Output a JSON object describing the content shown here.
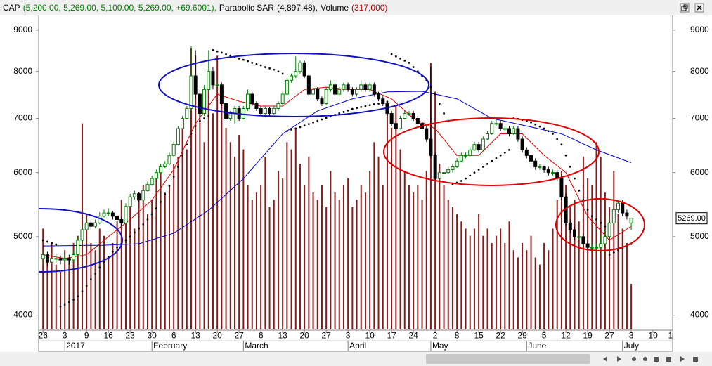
{
  "chart_data": {
    "type": "candlestick",
    "symbol": "CAP",
    "quote": "(5,200.00, 5,269.00, 5,100.00, 5,269.00, +69.6001),",
    "log_scale": true,
    "ylim": [
      3840,
      9270
    ],
    "yticks": [
      4000,
      5000,
      6000,
      7000,
      8000,
      9000
    ],
    "xlim": [
      -1,
      144.5
    ],
    "xticks": [
      {
        "value": 0,
        "label": "26"
      },
      {
        "value": 5,
        "label": "3"
      },
      {
        "value": 10,
        "label": "9"
      },
      {
        "value": 15,
        "label": "16"
      },
      {
        "value": 20,
        "label": "23"
      },
      {
        "value": 25,
        "label": "30"
      },
      {
        "value": 30,
        "label": "6"
      },
      {
        "value": 35,
        "label": "13"
      },
      {
        "value": 40,
        "label": "20"
      },
      {
        "value": 45,
        "label": "27"
      },
      {
        "value": 50,
        "label": "6"
      },
      {
        "value": 55,
        "label": "13"
      },
      {
        "value": 60,
        "label": "20"
      },
      {
        "value": 65,
        "label": "27"
      },
      {
        "value": 70,
        "label": "3"
      },
      {
        "value": 75,
        "label": "10"
      },
      {
        "value": 80,
        "label": "17"
      },
      {
        "value": 85,
        "label": "24"
      },
      {
        "value": 90,
        "label": "2"
      },
      {
        "value": 95,
        "label": "8"
      },
      {
        "value": 100,
        "label": "15"
      },
      {
        "value": 105,
        "label": "22"
      },
      {
        "value": 110,
        "label": "29"
      },
      {
        "value": 115,
        "label": "5"
      },
      {
        "value": 120,
        "label": "12"
      },
      {
        "value": 125,
        "label": "19"
      },
      {
        "value": 130,
        "label": "27"
      },
      {
        "value": 135,
        "label": "3"
      },
      {
        "value": 140,
        "label": "10"
      },
      {
        "value": 144,
        "label": "1"
      }
    ],
    "month_ticks": [
      {
        "value": 5,
        "label": "2017"
      },
      {
        "value": 25,
        "label": "February"
      },
      {
        "value": 46,
        "label": "March"
      },
      {
        "value": 70,
        "label": "April"
      },
      {
        "value": 89,
        "label": "May"
      },
      {
        "value": 111,
        "label": "June"
      },
      {
        "value": 133,
        "label": "July"
      }
    ],
    "up_color": "#008000",
    "down_color": "#000000",
    "candles": [
      [
        4700,
        4800,
        4600,
        4750
      ],
      [
        4750,
        4790,
        4600,
        4650
      ],
      [
        4650,
        4760,
        4620,
        4700
      ],
      [
        4700,
        4760,
        4640,
        4700
      ],
      [
        4700,
        4740,
        4620,
        4680
      ],
      [
        4680,
        4760,
        4640,
        4700
      ],
      [
        4700,
        4750,
        4620,
        4680
      ],
      [
        4680,
        4800,
        4650,
        4750
      ],
      [
        4750,
        5000,
        4720,
        4950
      ],
      [
        4950,
        5150,
        4900,
        5100
      ],
      [
        5100,
        5260,
        5080,
        5200
      ],
      [
        5200,
        5240,
        5100,
        5150
      ],
      [
        5150,
        5250,
        5120,
        5200
      ],
      [
        5200,
        5360,
        5180,
        5300
      ],
      [
        5300,
        5400,
        5280,
        5350
      ],
      [
        5350,
        5420,
        5300,
        5350
      ],
      [
        5350,
        5380,
        5250,
        5300
      ],
      [
        5300,
        5340,
        5200,
        5250
      ],
      [
        5250,
        5280,
        5150,
        5200
      ],
      [
        5200,
        5500,
        5180,
        5450
      ],
      [
        5450,
        5650,
        5430,
        5600
      ],
      [
        5600,
        5700,
        5560,
        5650
      ],
      [
        5650,
        5680,
        5520,
        5550
      ],
      [
        5550,
        5750,
        5530,
        5700
      ],
      [
        5700,
        5850,
        5680,
        5800
      ],
      [
        5800,
        5950,
        5780,
        5900
      ],
      [
        5900,
        6050,
        5880,
        6000
      ],
      [
        6000,
        6150,
        5980,
        6100
      ],
      [
        6100,
        6200,
        6080,
        6150
      ],
      [
        6150,
        6350,
        6130,
        6300
      ],
      [
        6300,
        6550,
        6280,
        6500
      ],
      [
        6500,
        6850,
        6480,
        6800
      ],
      [
        6800,
        7050,
        6780,
        7000
      ],
      [
        7000,
        7250,
        6980,
        7200
      ],
      [
        7200,
        8600,
        7150,
        7900
      ],
      [
        7900,
        8500,
        7400,
        7500
      ],
      [
        7500,
        7600,
        7000,
        7100
      ],
      [
        7100,
        7700,
        7050,
        7600
      ],
      [
        7600,
        8500,
        7550,
        8000
      ],
      [
        8000,
        8100,
        7600,
        7700
      ],
      [
        7700,
        7800,
        7650,
        7700
      ],
      [
        7700,
        7750,
        7250,
        7300
      ],
      [
        7300,
        7350,
        6950,
        7000
      ],
      [
        7000,
        7150,
        6950,
        7100
      ],
      [
        7100,
        7250,
        6900,
        7200
      ],
      [
        7200,
        7250,
        6950,
        7000
      ],
      [
        7000,
        7250,
        6980,
        7200
      ],
      [
        7200,
        7600,
        7150,
        7500
      ],
      [
        7500,
        7550,
        7250,
        7300
      ],
      [
        7300,
        7350,
        7150,
        7200
      ],
      [
        7200,
        7250,
        7050,
        7100
      ],
      [
        7100,
        7250,
        7080,
        7200
      ],
      [
        7200,
        7230,
        7050,
        7100
      ],
      [
        7100,
        7250,
        7080,
        7200
      ],
      [
        7200,
        7350,
        7150,
        7300
      ],
      [
        7300,
        7550,
        7280,
        7500
      ],
      [
        7500,
        7850,
        7480,
        7800
      ],
      [
        7800,
        7950,
        7750,
        7900
      ],
      [
        7900,
        8350,
        7850,
        8000
      ],
      [
        8000,
        8250,
        7950,
        8200
      ],
      [
        8200,
        8250,
        7850,
        7900
      ],
      [
        7900,
        7950,
        7450,
        7500
      ],
      [
        7500,
        7650,
        7450,
        7600
      ],
      [
        7600,
        7650,
        7350,
        7400
      ],
      [
        7400,
        7450,
        7250,
        7300
      ],
      [
        7300,
        7650,
        7280,
        7600
      ],
      [
        7600,
        7800,
        7550,
        7700
      ],
      [
        7700,
        7750,
        7450,
        7500
      ],
      [
        7500,
        7650,
        7450,
        7600
      ],
      [
        7600,
        7750,
        7550,
        7700
      ],
      [
        7700,
        7750,
        7550,
        7600
      ],
      [
        7600,
        7650,
        7450,
        7500
      ],
      [
        7500,
        7650,
        7450,
        7600
      ],
      [
        7600,
        7800,
        7550,
        7700
      ],
      [
        7700,
        7750,
        7550,
        7600
      ],
      [
        7600,
        7750,
        7550,
        7700
      ],
      [
        7700,
        7750,
        7450,
        7500
      ],
      [
        7500,
        7550,
        7350,
        7400
      ],
      [
        7400,
        7450,
        7250,
        7300
      ],
      [
        7300,
        7350,
        7050,
        7100
      ],
      [
        7100,
        7150,
        6850,
        6900
      ],
      [
        6900,
        6950,
        6750,
        6800
      ],
      [
        6800,
        7050,
        6780,
        7000
      ],
      [
        7000,
        7150,
        6980,
        7100
      ],
      [
        7100,
        7150,
        7050,
        7100
      ],
      [
        7100,
        7150,
        6950,
        7000
      ],
      [
        7000,
        7050,
        6850,
        6900
      ],
      [
        6900,
        6950,
        6750,
        6800
      ],
      [
        6800,
        6850,
        6550,
        6600
      ],
      [
        6600,
        8100,
        6250,
        6300
      ],
      [
        6300,
        6350,
        5850,
        5900
      ],
      [
        5900,
        6050,
        5880,
        6000
      ],
      [
        6000,
        6050,
        5950,
        6000
      ],
      [
        6000,
        6100,
        5980,
        6050
      ],
      [
        6050,
        6150,
        6000,
        6100
      ],
      [
        6100,
        6250,
        6080,
        6200
      ],
      [
        6200,
        6350,
        6180,
        6300
      ],
      [
        6300,
        6350,
        6250,
        6300
      ],
      [
        6300,
        6450,
        6280,
        6400
      ],
      [
        6400,
        6550,
        6380,
        6500
      ],
      [
        6500,
        6550,
        6350,
        6400
      ],
      [
        6400,
        6650,
        6380,
        6600
      ],
      [
        6600,
        6750,
        6580,
        6700
      ],
      [
        6700,
        6950,
        6680,
        6900
      ],
      [
        6900,
        6980,
        6850,
        6900
      ],
      [
        6900,
        6950,
        6750,
        6800
      ],
      [
        6800,
        6850,
        6750,
        6800
      ],
      [
        6800,
        6850,
        6650,
        6700
      ],
      [
        6700,
        6850,
        6680,
        6800
      ],
      [
        6800,
        6850,
        6550,
        6600
      ],
      [
        6600,
        6650,
        6350,
        6400
      ],
      [
        6400,
        6450,
        6250,
        6300
      ],
      [
        6300,
        6350,
        6150,
        6200
      ],
      [
        6200,
        6250,
        6050,
        6100
      ],
      [
        6100,
        6150,
        6050,
        6100
      ],
      [
        6100,
        6120,
        6000,
        6050
      ],
      [
        6050,
        6100,
        5950,
        6000
      ],
      [
        6000,
        6050,
        5950,
        6000
      ],
      [
        6000,
        6050,
        5850,
        5900
      ],
      [
        5900,
        5950,
        5550,
        5600
      ],
      [
        5600,
        5650,
        5150,
        5200
      ],
      [
        5200,
        5250,
        5050,
        5100
      ],
      [
        5100,
        5150,
        4950,
        5000
      ],
      [
        5000,
        5100,
        4950,
        5000
      ],
      [
        5000,
        5050,
        4850,
        4900
      ],
      [
        4900,
        4950,
        4800,
        4850
      ],
      [
        4850,
        4900,
        4800,
        4850
      ],
      [
        4850,
        4900,
        4800,
        4850
      ],
      [
        4850,
        5000,
        4820,
        4900
      ],
      [
        4900,
        5100,
        4880,
        5000
      ],
      [
        5000,
        5300,
        4980,
        5200
      ],
      [
        5200,
        5600,
        5180,
        5400
      ],
      [
        5400,
        5550,
        5350,
        5500
      ],
      [
        5500,
        5550,
        5300,
        5350
      ],
      [
        5350,
        5400,
        5250,
        5300
      ],
      [
        5200,
        5269,
        5100,
        5269
      ]
    ],
    "volume": {
      "name": "Volume",
      "value_label": "(317,000)",
      "color": "#8b1a1a",
      "y2lim": [
        0,
        2150000
      ],
      "values": [
        700000,
        500000,
        600000,
        450000,
        400000,
        550000,
        500000,
        600000,
        650000,
        1430000,
        800000,
        600000,
        550000,
        700000,
        650000,
        500000,
        600000,
        750000,
        900000,
        800000,
        850000,
        700000,
        950000,
        1000000,
        800000,
        900000,
        1050000,
        1100000,
        950000,
        1000000,
        1150000,
        1200000,
        1400000,
        1250000,
        1950000,
        1900000,
        1500000,
        1300000,
        1700000,
        1500000,
        1900000,
        1600000,
        1400000,
        1300000,
        1200000,
        1350000,
        1250000,
        1000000,
        900000,
        950000,
        1000000,
        1200000,
        850000,
        900000,
        1100000,
        1050000,
        1300000,
        1250000,
        1400000,
        1150000,
        1000000,
        1200000,
        950000,
        900000,
        1000000,
        850000,
        1100000,
        950000,
        900000,
        1000000,
        1050000,
        850000,
        900000,
        1000000,
        950000,
        1100000,
        1300000,
        1200000,
        1000000,
        1500000,
        1400000,
        1550000,
        1250000,
        1100000,
        1000000,
        950000,
        1000000,
        900000,
        1100000,
        1850000,
        1650000,
        1150000,
        1000000,
        900000,
        850000,
        800000,
        750000,
        700000,
        650000,
        700000,
        800000,
        650000,
        700000,
        600000,
        650000,
        700000,
        600000,
        750000,
        550000,
        500000,
        600000,
        550000,
        650000,
        500000,
        450000,
        600000,
        550000,
        700000,
        900000,
        1100000,
        1000000,
        850000,
        900000,
        750000,
        1200000,
        1050000,
        1000000,
        1300000,
        1200000,
        950000,
        850000,
        1100000,
        800000,
        700000,
        600000,
        317000
      ]
    },
    "overlays": [
      {
        "type": "dots",
        "name": "Parabolic SAR",
        "value_label": "(4,897.48),",
        "color": "#000000",
        "values": [
          4950,
          4930,
          4910,
          4890,
          4100,
          4120,
          4150,
          4180,
          4220,
          4280,
          4350,
          4430,
          4500,
          4580,
          4650,
          4720,
          4790,
          4850,
          4900,
          4950,
          5000,
          5060,
          5120,
          5180,
          5250,
          5330,
          5420,
          5520,
          5640,
          5780,
          5930,
          6100,
          6300,
          6500,
          6700,
          6850,
          6950,
          7000,
          7050,
          8500,
          8470,
          8440,
          8400,
          8370,
          8340,
          8300,
          8270,
          8240,
          8200,
          8170,
          8140,
          8100,
          8070,
          8040,
          8000,
          7950,
          6750,
          6780,
          6800,
          6830,
          6860,
          6890,
          6920,
          6950,
          6980,
          7010,
          7040,
          7070,
          7100,
          7130,
          7160,
          7190,
          7210,
          7230,
          7250,
          7270,
          7290,
          7300,
          7320,
          7340,
          8400,
          8350,
          8300,
          8250,
          8200,
          8100,
          8000,
          7900,
          7800,
          7650,
          7500,
          7300,
          7100,
          6950,
          5800,
          5830,
          5860,
          5900,
          5950,
          6000,
          6050,
          6100,
          6150,
          6200,
          6250,
          6300,
          6350,
          6400,
          7000,
          6990,
          6970,
          6950,
          6920,
          6880,
          6840,
          6800,
          6750,
          6700,
          6600,
          6500,
          6300,
          6100,
          5900,
          5700,
          5550,
          5400,
          5300,
          5250,
          5200,
          5150,
          4750,
          4780,
          4810,
          4840,
          4870,
          4897.48
        ]
      },
      {
        "type": "line",
        "color": "#e00000",
        "x": [
          0,
          5,
          10,
          15,
          20,
          25,
          30,
          35,
          40,
          45,
          50,
          55,
          60,
          65,
          70,
          75,
          80,
          85,
          90,
          95,
          100,
          105,
          110,
          115,
          120,
          125,
          130,
          135
        ],
        "values": [
          4750,
          4700,
          4750,
          5000,
          5250,
          5550,
          6050,
          6900,
          7500,
          7350,
          7250,
          7250,
          7600,
          7650,
          7600,
          7600,
          7400,
          7000,
          6800,
          6300,
          6300,
          6700,
          6700,
          6300,
          6000,
          5300,
          4950,
          5150
        ]
      },
      {
        "type": "line",
        "color": "#0000cc",
        "x": [
          0,
          14,
          22,
          30,
          38,
          46,
          55,
          63,
          71,
          79,
          87,
          95,
          103,
          111,
          119,
          127,
          135
        ],
        "values": [
          4870,
          4880,
          4900,
          5050,
          5390,
          5900,
          6700,
          7150,
          7400,
          7550,
          7560,
          7400,
          7000,
          6850,
          6700,
          6400,
          6170
        ]
      }
    ],
    "last_price": {
      "value": 5269,
      "label": "5269.00"
    }
  }
}
